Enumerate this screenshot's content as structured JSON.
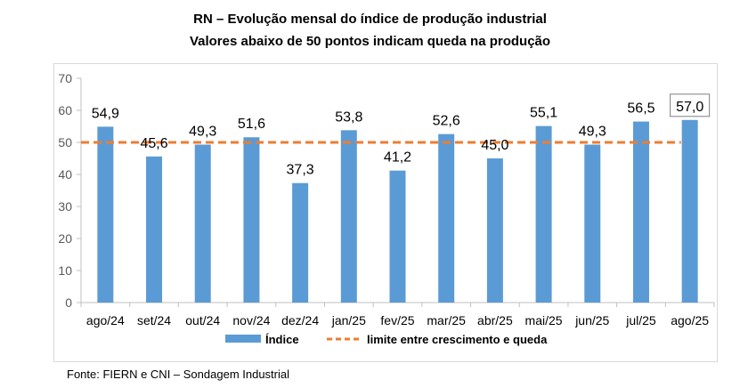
{
  "chart_data": {
    "type": "bar",
    "title": "RN – Evolução mensal do índice de produção industrial",
    "subtitle": "Valores abaixo de 50 pontos indicam queda na produção",
    "categories": [
      "ago/24",
      "set/24",
      "out/24",
      "nov/24",
      "dez/24",
      "jan/25",
      "fev/25",
      "mar/25",
      "abr/25",
      "mai/25",
      "jun/25",
      "jul/25",
      "ago/25"
    ],
    "series": [
      {
        "name": "Índice",
        "type": "bar",
        "color": "#5b9bd5",
        "values": [
          54.9,
          45.6,
          49.3,
          51.6,
          37.3,
          53.8,
          41.2,
          52.6,
          45.0,
          55.1,
          49.3,
          56.5,
          57.0
        ],
        "labels": [
          "54,9",
          "45,6",
          "49,3",
          "51,6",
          "37,3",
          "53,8",
          "41,2",
          "52,6",
          "45,0",
          "55,1",
          "49,3",
          "56,5",
          "57,0"
        ]
      },
      {
        "name": "limite entre crescimento e queda",
        "type": "line",
        "style": "dashed",
        "color": "#ed7d31",
        "value": 50
      }
    ],
    "ylim": [
      0,
      70
    ],
    "yticks": [
      0,
      10,
      20,
      30,
      40,
      50,
      60,
      70
    ],
    "xlabel": "",
    "ylabel": "",
    "grid": false,
    "legend": "bottom",
    "highlighted_label": "ago/25"
  },
  "source": "Fonte: FIERN e CNI – Sondagem Industrial"
}
